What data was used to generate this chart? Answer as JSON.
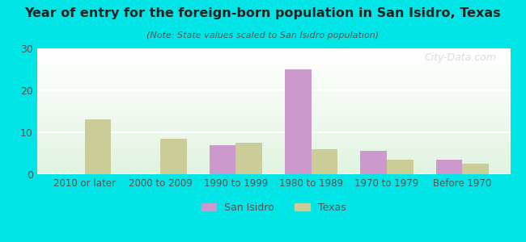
{
  "title": "Year of entry for the foreign-born population in San Isidro, Texas",
  "subtitle": "(Note: State values scaled to San Isidro population)",
  "categories": [
    "2010 or later",
    "2000 to 2009",
    "1990 to 1999",
    "1980 to 1989",
    "1970 to 1979",
    "Before 1970"
  ],
  "san_isidro": [
    0,
    0,
    7,
    25,
    5.5,
    3.5
  ],
  "texas": [
    13,
    8.5,
    7.5,
    6,
    3.5,
    2.5
  ],
  "san_isidro_color": "#cc99cc",
  "texas_color": "#cccc99",
  "background_outer": "#00e5e5",
  "ylim": [
    0,
    30
  ],
  "yticks": [
    0,
    10,
    20,
    30
  ],
  "bar_width": 0.35,
  "watermark": "City-Data.com"
}
